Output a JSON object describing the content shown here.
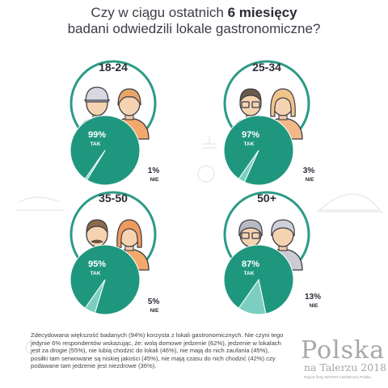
{
  "header": {
    "title_part1": "Czy w ciągu ostatnich ",
    "title_bold": "6 miesięcy",
    "title_line2": "badani odwiedzili lokale gastronomiczne?"
  },
  "chart_data": [
    {
      "type": "pie",
      "title": "18-24",
      "categories": [
        "TAK",
        "NIE"
      ],
      "values": [
        99,
        1
      ]
    },
    {
      "type": "pie",
      "title": "25-34",
      "categories": [
        "TAK",
        "NIE"
      ],
      "values": [
        97,
        3
      ]
    },
    {
      "type": "pie",
      "title": "35-50",
      "categories": [
        "TAK",
        "NIE"
      ],
      "values": [
        95,
        5
      ]
    },
    {
      "type": "pie",
      "title": "50+",
      "categories": [
        "TAK",
        "NIE"
      ],
      "values": [
        87,
        13
      ]
    }
  ],
  "footer": {
    "text": "Zdecydowana większość badanych (94%) korzysta z lokali gastronomicznych. Nie czyni tego jedynie 6% respondentów wskazując, że: wolą domowe jedzenie (62%), jedzenie w lokalach jest za drogie (55%), nie lubią chodzić do lokali (46%), nie mają do nich zaufania (45%), posiłki tam serwowane są niskiej jakości (45%), nie mają czasu do nich chodzić (42%) czy podawane tam jedzenie jest niezdrowe (36%)."
  },
  "logo": {
    "main": "Polska",
    "sub": "na Talerzu 2018",
    "note": "Raport firmy MAKRO Cash&Carry Polska"
  },
  "colors": {
    "teal": "#1f977f",
    "teal_light": "#7ccfc0",
    "ring": "#2b9b86",
    "text": "#3c3c46"
  }
}
